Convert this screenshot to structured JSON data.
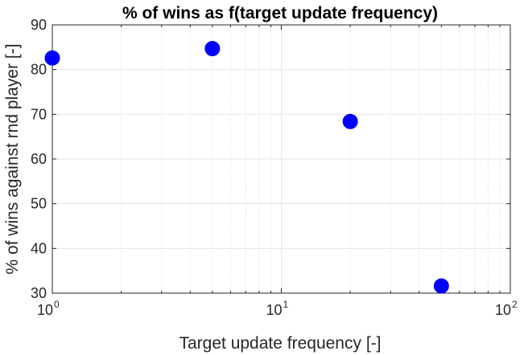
{
  "chart_data": {
    "type": "scatter",
    "title": "% of wins as f(target update frequency)",
    "xlabel": "Target update frequency [-]",
    "ylabel": "% of wins against rnd player [-]",
    "x_scale": "log",
    "xlim": [
      1,
      100
    ],
    "ylim": [
      30,
      90
    ],
    "x_ticks": [
      {
        "base": "10",
        "exp": "0",
        "value": 1
      },
      {
        "base": "10",
        "exp": "1",
        "value": 10
      },
      {
        "base": "10",
        "exp": "2",
        "value": 100
      }
    ],
    "y_ticks": [
      {
        "label": "30",
        "value": 30
      },
      {
        "label": "40",
        "value": 40
      },
      {
        "label": "50",
        "value": 50
      },
      {
        "label": "60",
        "value": 60
      },
      {
        "label": "70",
        "value": 70
      },
      {
        "label": "80",
        "value": 80
      },
      {
        "label": "90",
        "value": 90
      }
    ],
    "grid": true,
    "minor_grid": true,
    "box": true,
    "marker_color": "#0000ff",
    "axis_color": "#262626",
    "grid_color": "#e6e6e6",
    "points": [
      {
        "x": 1,
        "y": 82.6
      },
      {
        "x": 5,
        "y": 84.7
      },
      {
        "x": 20,
        "y": 68.4
      },
      {
        "x": 50,
        "y": 31.6
      }
    ]
  }
}
